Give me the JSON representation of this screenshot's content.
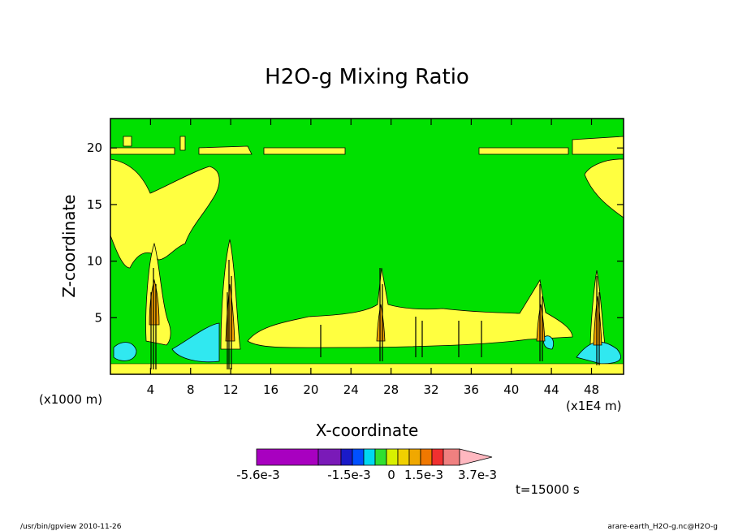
{
  "chart_data": {
    "type": "heatmap",
    "title": "H2O-g Mixing Ratio",
    "xlabel": "X-coordinate",
    "ylabel": "Z-coordinate",
    "x_unit_left": "(x1000 m)",
    "x_unit_right": "(x1E4 m)",
    "xlim": [
      0,
      51.2
    ],
    "ylim": [
      0,
      22.6
    ],
    "x_ticks": [
      "4",
      "8",
      "12",
      "16",
      "20",
      "24",
      "28",
      "32",
      "36",
      "40",
      "44",
      "48"
    ],
    "y_ticks": [
      "5",
      "10",
      "15",
      "20"
    ],
    "colorbar": {
      "labels": [
        "-5.6e-3",
        "-1.5e-3",
        "0",
        "1.5e-3",
        "3.7e-3"
      ],
      "colors": [
        "#a800c0",
        "#7a1ab8",
        "#1a1ac8",
        "#0050ff",
        "#00d8f0",
        "#30e030",
        "#d8f000",
        "#f0d000",
        "#f0a800",
        "#f07800",
        "#f03030",
        "#f08080",
        "#ffb8c0"
      ]
    },
    "time_label": "t=15000 s",
    "colors": {
      "background": "#00e000",
      "moist": "#ffff40",
      "dry": "#30e8f0",
      "core": "#f0a000",
      "contour": "#000000"
    }
  },
  "footer": {
    "left": "/usr/bin/gpview  2010-11-26",
    "right": "arare-earth_H2O-g.nc@H2O-g"
  }
}
